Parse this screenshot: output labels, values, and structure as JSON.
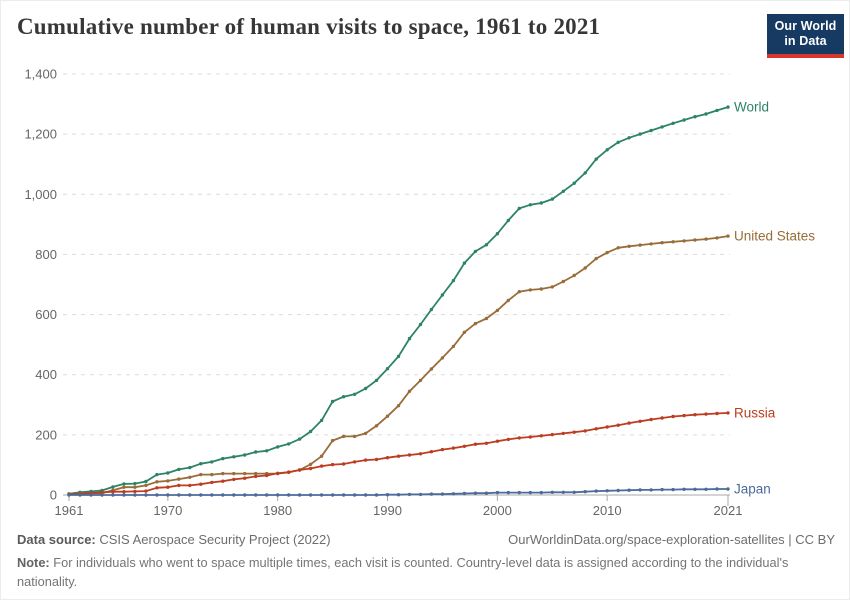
{
  "header": {
    "title": "Cumulative number of human visits to space, 1961 to 2021",
    "logo": {
      "line1": "Our World",
      "line2": "in Data"
    }
  },
  "chart_data": {
    "type": "line",
    "title": "Cumulative number of human visits to space, 1961 to 2021",
    "xlabel": "",
    "ylabel": "",
    "xlim": [
      1961,
      2021
    ],
    "ylim": [
      0,
      1400
    ],
    "grid": true,
    "gridline_style": "dashed",
    "legend_position": "end-of-line-labels",
    "x_ticks": [
      1961,
      1970,
      1980,
      1990,
      2000,
      2010,
      2021
    ],
    "y_ticks": [
      0,
      200,
      400,
      600,
      800,
      1000,
      1200,
      1400
    ],
    "x": [
      1961,
      1962,
      1963,
      1964,
      1965,
      1966,
      1967,
      1968,
      1969,
      1970,
      1971,
      1972,
      1973,
      1974,
      1975,
      1976,
      1977,
      1978,
      1979,
      1980,
      1981,
      1982,
      1983,
      1984,
      1985,
      1986,
      1987,
      1988,
      1989,
      1990,
      1991,
      1992,
      1993,
      1994,
      1995,
      1996,
      1997,
      1998,
      1999,
      2000,
      2001,
      2002,
      2003,
      2004,
      2005,
      2006,
      2007,
      2008,
      2009,
      2010,
      2011,
      2012,
      2013,
      2014,
      2015,
      2016,
      2017,
      2018,
      2019,
      2020,
      2021
    ],
    "series": [
      {
        "name": "World",
        "color": "#2C8465",
        "values": [
          4,
          9,
          12,
          15,
          27,
          37,
          38,
          45,
          68,
          73,
          85,
          91,
          104,
          110,
          121,
          127,
          133,
          143,
          147,
          160,
          170,
          186,
          211,
          248,
          311,
          327,
          335,
          354,
          381,
          420,
          461,
          520,
          567,
          617,
          665,
          713,
          771,
          810,
          832,
          869,
          913,
          953,
          965,
          971,
          984,
          1010,
          1037,
          1071,
          1117,
          1148,
          1173,
          1188,
          1200,
          1212,
          1224,
          1236,
          1247,
          1258,
          1267,
          1279,
          1290
        ]
      },
      {
        "name": "United States",
        "color": "#996D39",
        "values": [
          2,
          5,
          6,
          6,
          16,
          26,
          26,
          32,
          44,
          47,
          53,
          59,
          68,
          68,
          71,
          71,
          71,
          71,
          71,
          71,
          75,
          83,
          102,
          129,
          181,
          195,
          195,
          205,
          230,
          262,
          297,
          345,
          381,
          419,
          456,
          494,
          541,
          570,
          587,
          614,
          647,
          676,
          682,
          685,
          692,
          710,
          730,
          755,
          786,
          806,
          822,
          827,
          831,
          835,
          839,
          842,
          845,
          848,
          851,
          855,
          861
        ]
      },
      {
        "name": "Russia",
        "color": "#BC3D22",
        "values": [
          2,
          4,
          6,
          9,
          11,
          11,
          12,
          13,
          24,
          26,
          32,
          32,
          36,
          42,
          46,
          52,
          56,
          62,
          65,
          72,
          76,
          83,
          88,
          96,
          101,
          103,
          110,
          116,
          118,
          124,
          129,
          133,
          137,
          144,
          151,
          156,
          162,
          169,
          172,
          179,
          185,
          190,
          193,
          197,
          201,
          205,
          209,
          213,
          220,
          226,
          232,
          239,
          245,
          251,
          256,
          261,
          264,
          267,
          269,
          271,
          273
        ]
      },
      {
        "name": "Japan",
        "color": "#4C6A9C",
        "values": [
          0,
          0,
          0,
          0,
          0,
          0,
          0,
          0,
          0,
          0,
          0,
          0,
          0,
          0,
          0,
          0,
          0,
          0,
          0,
          0,
          0,
          0,
          0,
          0,
          0,
          0,
          0,
          0,
          0,
          1,
          1,
          2,
          2,
          3,
          3,
          4,
          5,
          6,
          6,
          8,
          8,
          8,
          8,
          8,
          9,
          9,
          9,
          11,
          13,
          14,
          15,
          16,
          17,
          17,
          18,
          18,
          19,
          19,
          19,
          20,
          20
        ]
      }
    ]
  },
  "footer": {
    "source_label": "Data source:",
    "source_text": " CSIS Aerospace Security Project (2022)",
    "link_text": "OurWorldinData.org/space-exploration-satellites | CC BY",
    "note_label": "Note:",
    "note_text": " For individuals who went to space multiple times, each visit is counted. Country-level data is assigned according to the individual's nationality."
  }
}
